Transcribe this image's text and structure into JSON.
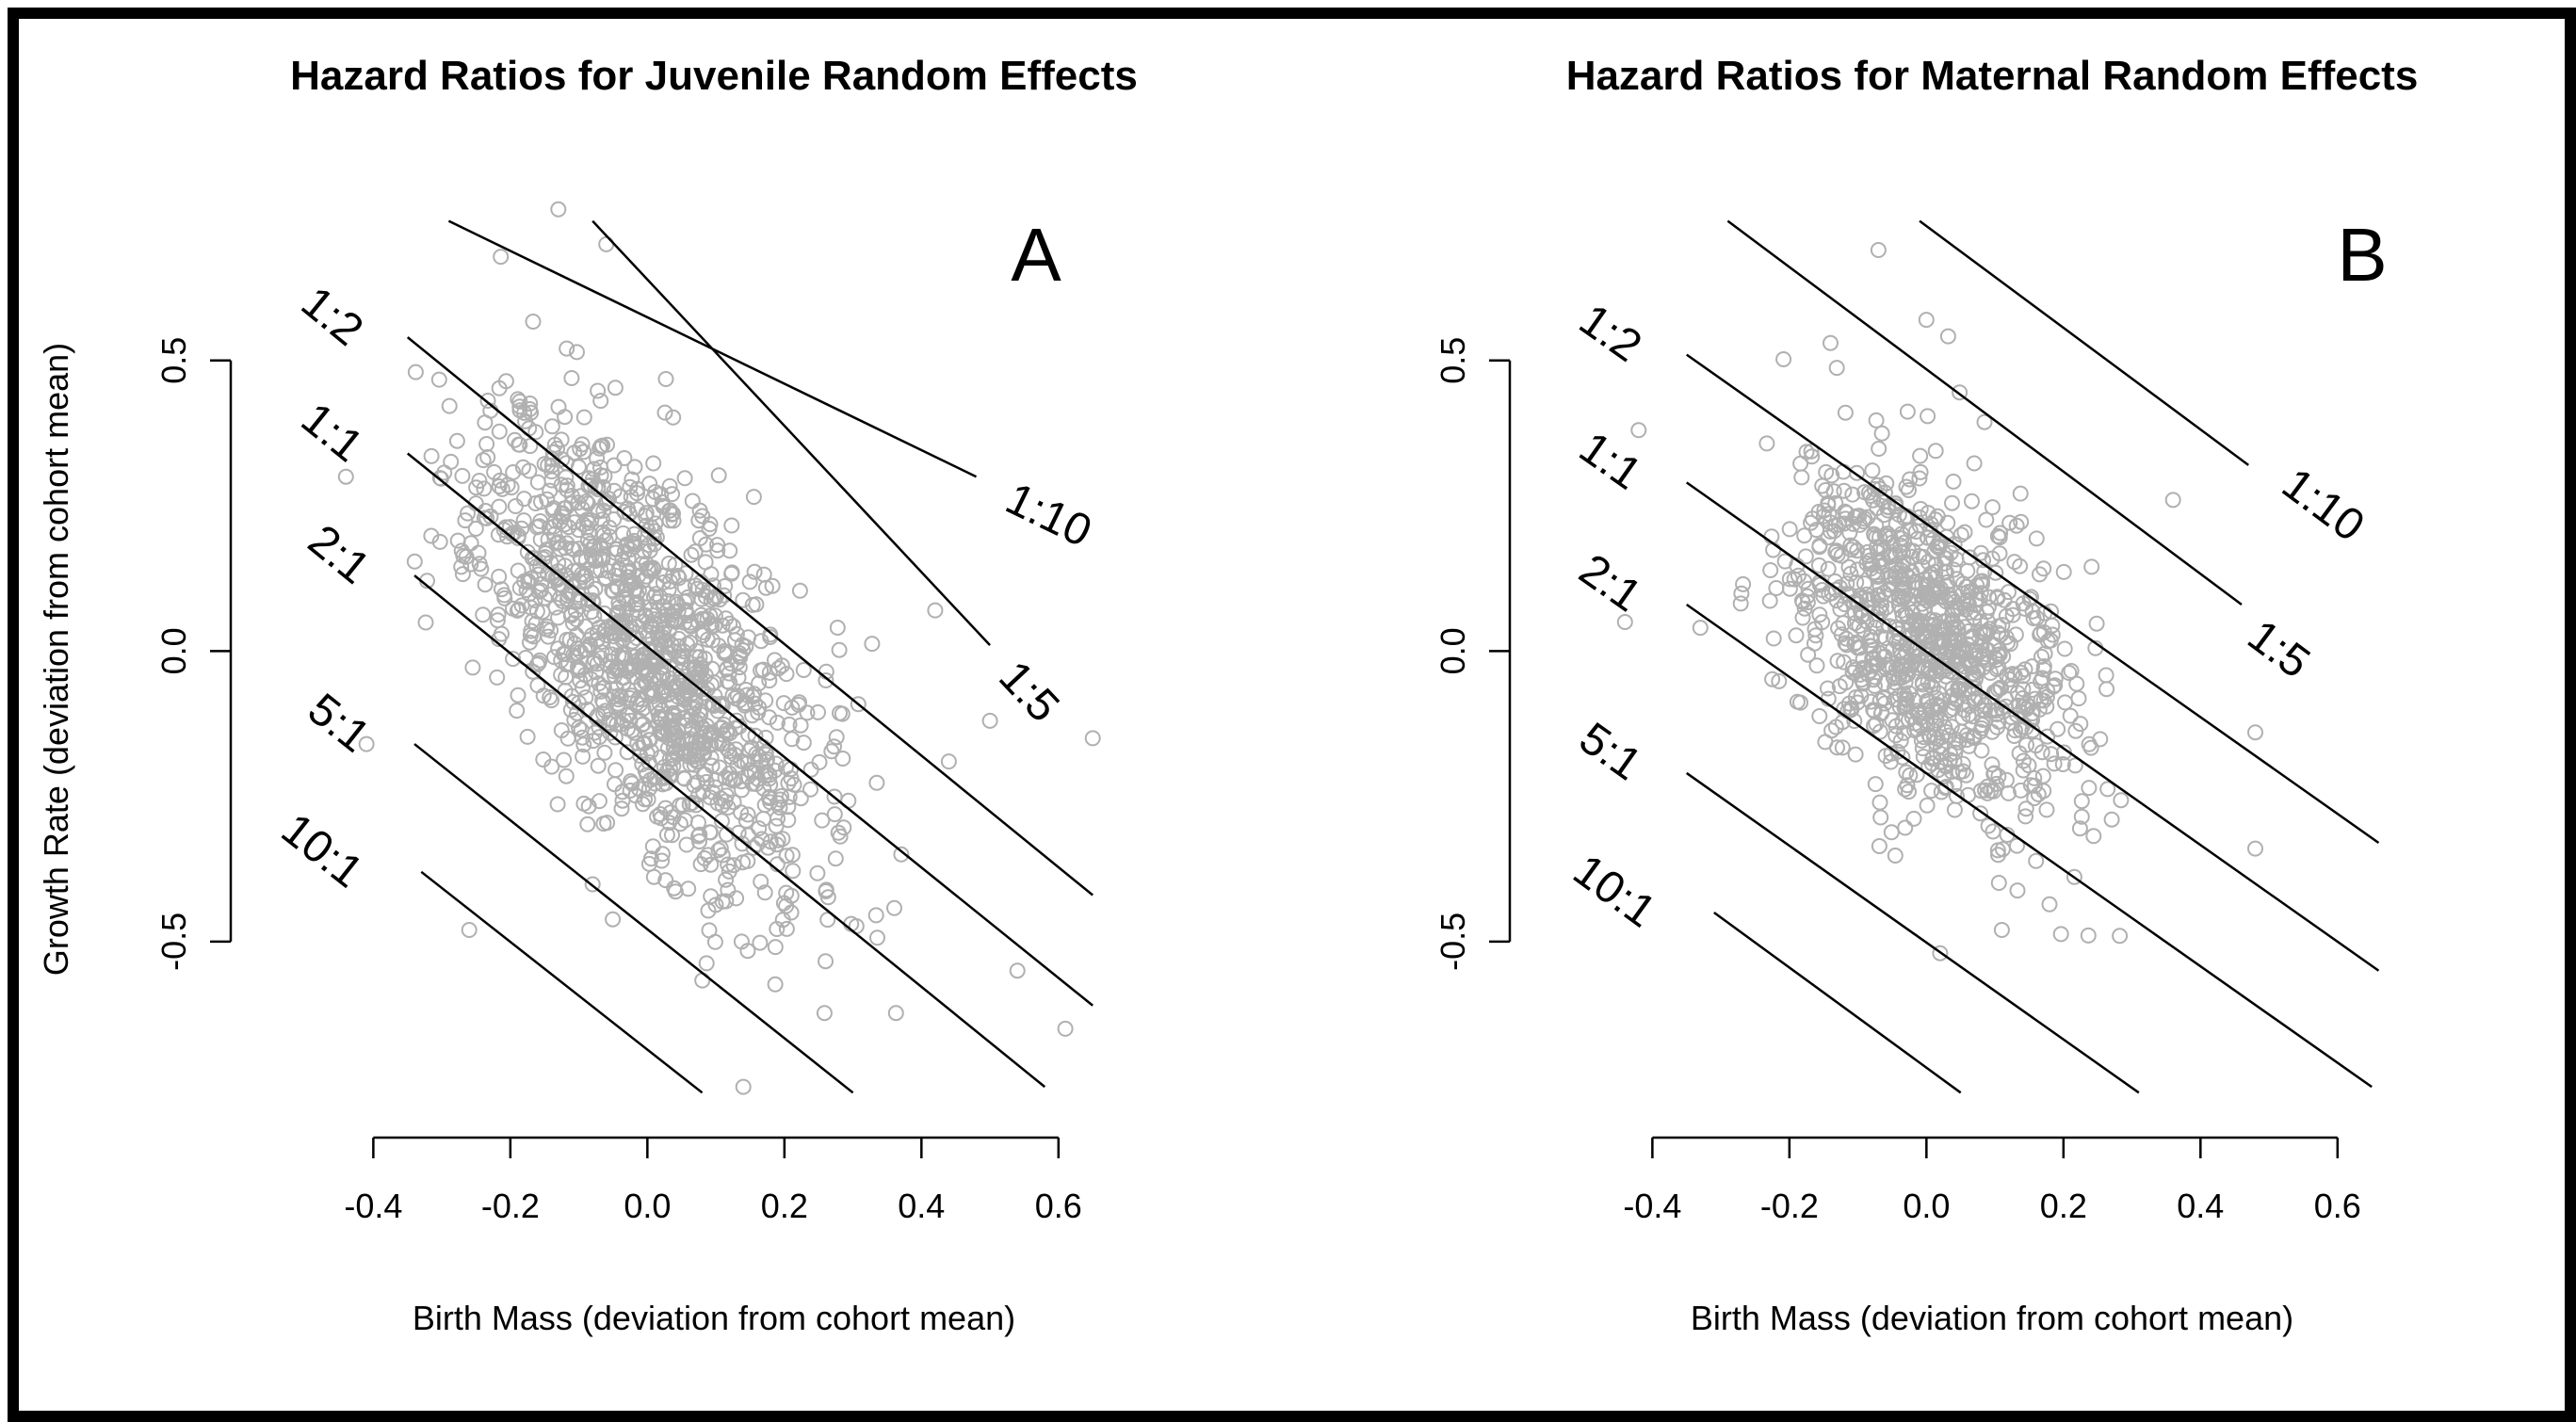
{
  "chart_data": [
    {
      "type": "scatter",
      "panel_label": "A",
      "title": "Hazard Ratios for Juvenile Random Effects",
      "xlabel": "Birth Mass (deviation from cohort mean)",
      "ylabel": "Growth Rate (deviation from cohort mean)",
      "x_ticks": [
        -0.4,
        -0.2,
        0.0,
        0.2,
        0.4,
        0.6
      ],
      "x_tick_labels": [
        "-0.4",
        "-0.2",
        "0.0",
        "0.2",
        "0.4",
        "0.6"
      ],
      "y_ticks": [
        -0.5,
        0.0,
        0.5
      ],
      "y_tick_labels": [
        "-0.5",
        "0.0",
        "0.5"
      ],
      "xlim": [
        -0.45,
        0.68
      ],
      "ylim": [
        -0.8,
        0.78
      ],
      "point_color": "#b0b0b0",
      "cloud": {
        "count": 1300,
        "cx": 0.0,
        "cy": 0.0,
        "sx": 0.12,
        "sy": 0.2,
        "corr": -0.6,
        "seed": 11
      },
      "extra_points": [
        {
          "x": -0.13,
          "y": 0.76
        },
        {
          "x": -0.06,
          "y": 0.7
        },
        {
          "x": 0.14,
          "y": -0.75
        },
        {
          "x": 0.65,
          "y": -0.15
        },
        {
          "x": 0.61,
          "y": -0.65
        },
        {
          "x": -0.44,
          "y": 0.3
        },
        {
          "x": -0.41,
          "y": -0.16
        },
        {
          "x": 0.5,
          "y": -0.12
        },
        {
          "x": 0.54,
          "y": -0.55
        },
        {
          "x": 0.42,
          "y": 0.07
        },
        {
          "x": 0.44,
          "y": -0.19
        },
        {
          "x": -0.26,
          "y": -0.48
        }
      ],
      "contours": [
        {
          "label": "1:10",
          "x1": -0.29,
          "y1": 0.74,
          "x2": 0.48,
          "y2": 0.3
        },
        {
          "label": "1:5",
          "x1": -0.08,
          "y1": 0.74,
          "x2": 0.5,
          "y2": 0.01
        },
        {
          "label": "1:2",
          "x1": -0.35,
          "y1": 0.54,
          "x2": 0.65,
          "y2": -0.42
        },
        {
          "label": "1:1",
          "x1": -0.35,
          "y1": 0.34,
          "x2": 0.65,
          "y2": -0.61
        },
        {
          "label": "2:1",
          "x1": -0.34,
          "y1": 0.13,
          "x2": 0.58,
          "y2": -0.75
        },
        {
          "label": "5:1",
          "x1": -0.34,
          "y1": -0.16,
          "x2": 0.3,
          "y2": -0.76
        },
        {
          "label": "10:1",
          "x1": -0.33,
          "y1": -0.38,
          "x2": 0.08,
          "y2": -0.76
        }
      ]
    },
    {
      "type": "scatter",
      "panel_label": "B",
      "title": "Hazard Ratios for Maternal Random Effects",
      "xlabel": "Birth Mass (deviation from cohort mean)",
      "ylabel": "",
      "x_ticks": [
        -0.4,
        -0.2,
        0.0,
        0.2,
        0.4,
        0.6
      ],
      "x_tick_labels": [
        "-0.4",
        "-0.2",
        "0.0",
        "0.2",
        "0.4",
        "0.6"
      ],
      "y_ticks": [
        -0.5,
        0.0,
        0.5
      ],
      "y_tick_labels": [
        "-0.5",
        "0.0",
        "0.5"
      ],
      "xlim": [
        -0.45,
        0.68
      ],
      "ylim": [
        -0.8,
        0.78
      ],
      "point_color": "#b0b0b0",
      "cloud": {
        "count": 1000,
        "cx": 0.0,
        "cy": 0.02,
        "sx": 0.1,
        "sy": 0.15,
        "corr": -0.45,
        "seed": 29
      },
      "extra_points": [
        {
          "x": -0.07,
          "y": 0.69
        },
        {
          "x": 0.0,
          "y": 0.57
        },
        {
          "x": -0.44,
          "y": 0.05
        },
        {
          "x": -0.42,
          "y": 0.38
        },
        {
          "x": -0.33,
          "y": 0.04
        },
        {
          "x": 0.36,
          "y": 0.26
        },
        {
          "x": 0.48,
          "y": -0.14
        },
        {
          "x": 0.48,
          "y": -0.34
        },
        {
          "x": 0.02,
          "y": -0.52
        },
        {
          "x": 0.11,
          "y": -0.48
        },
        {
          "x": -0.14,
          "y": 0.53
        }
      ],
      "contours": [
        {
          "label": "1:10",
          "x1": -0.01,
          "y1": 0.74,
          "x2": 0.47,
          "y2": 0.32
        },
        {
          "label": "1:5",
          "x1": -0.29,
          "y1": 0.74,
          "x2": 0.46,
          "y2": 0.08
        },
        {
          "label": "1:2",
          "x1": -0.35,
          "y1": 0.51,
          "x2": 0.66,
          "y2": -0.33
        },
        {
          "label": "1:1",
          "x1": -0.35,
          "y1": 0.29,
          "x2": 0.66,
          "y2": -0.55
        },
        {
          "label": "2:1",
          "x1": -0.35,
          "y1": 0.08,
          "x2": 0.65,
          "y2": -0.75
        },
        {
          "label": "5:1",
          "x1": -0.35,
          "y1": -0.21,
          "x2": 0.31,
          "y2": -0.76
        },
        {
          "label": "10:1",
          "x1": -0.31,
          "y1": -0.45,
          "x2": 0.05,
          "y2": -0.76
        }
      ]
    }
  ]
}
